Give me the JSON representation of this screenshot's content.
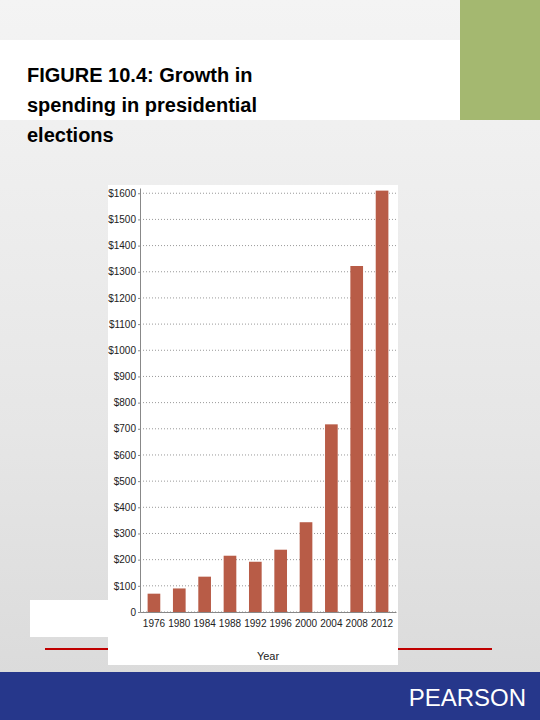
{
  "chart_data": {
    "type": "bar",
    "title": "FIGURE 10.4: Growth in spending in presidential elections",
    "x_label": "Year",
    "categories": [
      "1976",
      "1980",
      "1984",
      "1988",
      "1992",
      "1996",
      "2000",
      "2004",
      "2008",
      "2012"
    ],
    "values": [
      70,
      90,
      135,
      215,
      192,
      238,
      343,
      717,
      1322,
      1610
    ],
    "color": "#b85c47",
    "ylim": [
      0,
      1620
    ],
    "yticks": [
      0,
      {
        "value": 100,
        "label": "$100"
      },
      {
        "value": 200,
        "label": "$200"
      },
      {
        "value": 300,
        "label": "$300"
      },
      {
        "value": 400,
        "label": "$400"
      },
      {
        "value": 500,
        "label": "$500"
      },
      {
        "value": 600,
        "label": "$600"
      },
      {
        "value": 700,
        "label": "$700"
      },
      {
        "value": 800,
        "label": "$800"
      },
      {
        "value": 900,
        "label": "$900"
      },
      {
        "value": 1000,
        "label": "$1000"
      },
      {
        "value": 1100,
        "label": "$1100"
      },
      {
        "value": 1200,
        "label": "$1200"
      },
      {
        "value": 1300,
        "label": "$1300"
      },
      {
        "value": 1400,
        "label": "$1400"
      },
      {
        "value": 1500,
        "label": "$1500"
      },
      {
        "value": 1600,
        "label": "$1600"
      }
    ],
    "grid": true
  },
  "publisher": "PEARSON"
}
